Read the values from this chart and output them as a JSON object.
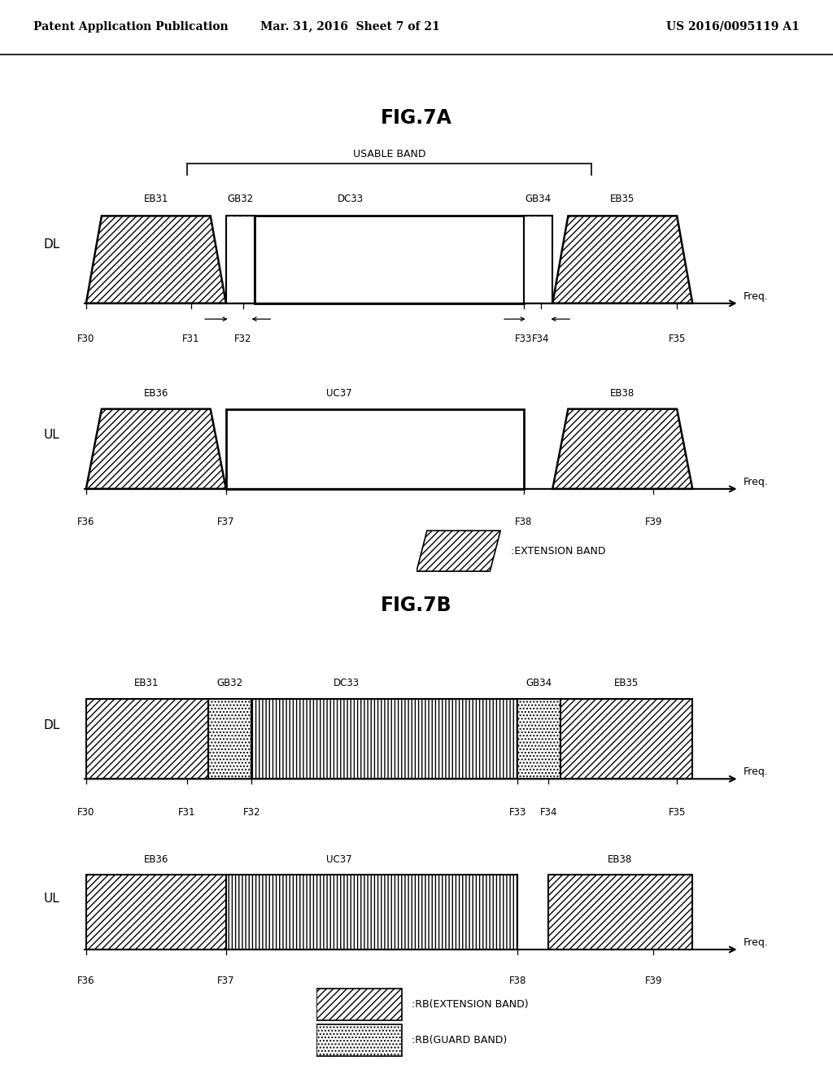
{
  "header_left": "Patent Application Publication",
  "header_center": "Mar. 31, 2016  Sheet 7 of 21",
  "header_right": "US 2016/0095119 A1",
  "fig7a_title": "FIG.7A",
  "fig7b_title": "FIG.7B",
  "bg_color": "#ffffff",
  "line_color": "#000000"
}
